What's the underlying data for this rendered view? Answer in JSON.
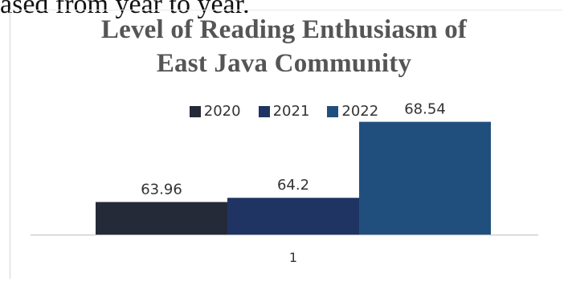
{
  "fragment_text": "ased from year to year.",
  "chart_data": {
    "type": "bar",
    "title": "Level of Reading Enthusiasm of East Java Community",
    "title_lines": [
      "Level of Reading Enthusiasm of",
      "East Java Community"
    ],
    "categories": [
      "1"
    ],
    "series": [
      {
        "name": "2020",
        "values": [
          63.96
        ],
        "color": "#252a38",
        "label": "63.96"
      },
      {
        "name": "2021",
        "values": [
          64.2
        ],
        "color": "#1f3462",
        "label": "64.2"
      },
      {
        "name": "2022",
        "values": [
          68.54
        ],
        "color": "#214f7d",
        "label": "68.54"
      }
    ],
    "legend_position": "top",
    "grid": false
  }
}
